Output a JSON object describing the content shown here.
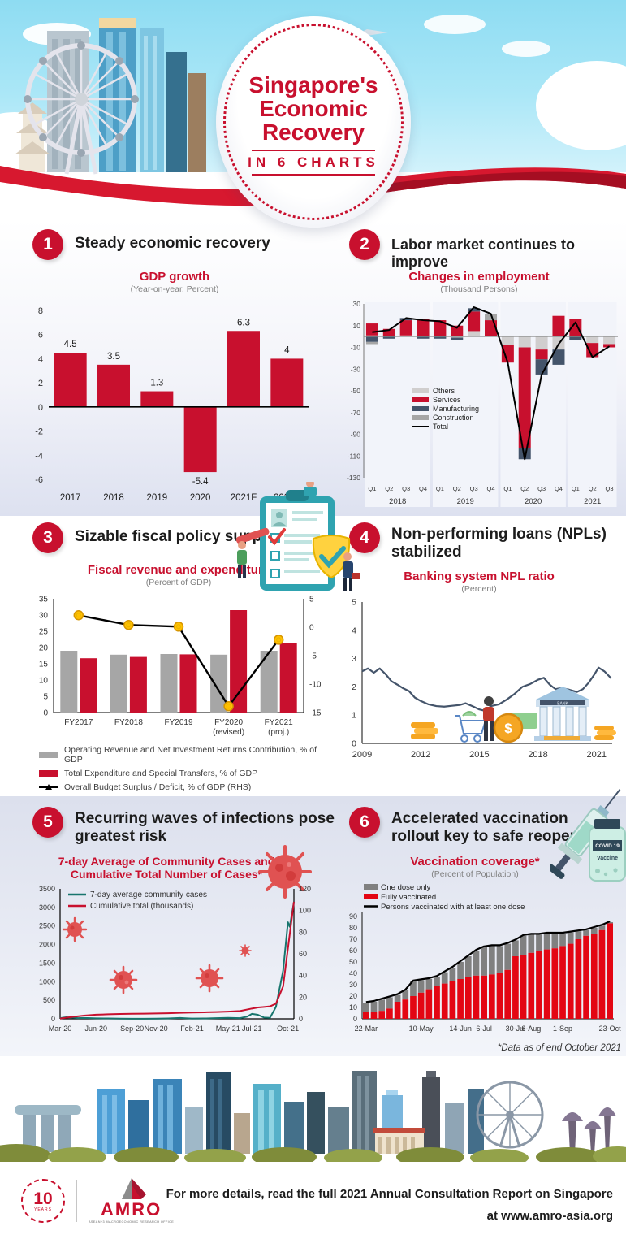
{
  "header": {
    "title_lines": [
      "Singapore's",
      "Economic",
      "Recovery"
    ],
    "subtitle": "IN 6 CHARTS"
  },
  "deco": {
    "vial_label_line1": "COVID 19",
    "vial_label_line2": "Vaccine",
    "bank_label": "BANK"
  },
  "footnote": "*Data as of end October 2021",
  "footer": {
    "line1": "For more details, read the full 2021 Annual Consultation Report on Singapore",
    "line2": "at www.amro-asia.org",
    "anniversary_number": "10",
    "anniversary_caption": "YEARS",
    "amro_name": "AMRO",
    "amro_tagline": "ASEAN+3 MACROECONOMIC RESEARCH OFFICE"
  },
  "chart_data": [
    {
      "type": "bar",
      "number": "1",
      "heading_lines": [
        "Steady economic recovery"
      ],
      "title_lines": [
        "GDP growth"
      ],
      "subtitle": "(Year-on-year, Percent)",
      "categories": [
        "2017",
        "2018",
        "2019",
        "2020",
        "2021F",
        "2022F"
      ],
      "values": [
        4.5,
        3.5,
        1.3,
        -5.4,
        6.3,
        4
      ],
      "bar_color": "#c8102e",
      "ylim": [
        -6,
        8
      ],
      "yticks": [
        8,
        6,
        4,
        2,
        0,
        -2,
        -4,
        -6
      ]
    },
    {
      "type": "stacked_bar_line",
      "number": "2",
      "heading_lines": [
        "Labor market continues to improve"
      ],
      "title_lines": [
        "Changes in employment"
      ],
      "subtitle": "(Thousand Persons)",
      "categories": [
        "Q1",
        "Q2",
        "Q3",
        "Q4",
        "Q1",
        "Q2",
        "Q3",
        "Q4",
        "Q1",
        "Q2",
        "Q3",
        "Q4",
        "Q1",
        "Q2",
        "Q3"
      ],
      "year_groups": [
        {
          "label": "2018",
          "span": 4
        },
        {
          "label": "2019",
          "span": 4
        },
        {
          "label": "2020",
          "span": 4
        },
        {
          "label": "2021",
          "span": 3
        }
      ],
      "series": [
        {
          "name": "Others",
          "color": "#d0cece",
          "values": [
            1,
            0,
            1,
            0,
            0,
            -1,
            5,
            0,
            -8,
            -10,
            -12,
            -12,
            0,
            -6,
            -7
          ]
        },
        {
          "name": "Services",
          "color": "#c8102e",
          "values": [
            11,
            7,
            14,
            16,
            15,
            10,
            18,
            15,
            -16,
            -93,
            -9,
            19,
            16,
            -13,
            -3
          ]
        },
        {
          "name": "Manufacturing",
          "color": "#44546a",
          "values": [
            -5,
            -2,
            2,
            -2,
            -2,
            -2,
            3,
            0,
            0,
            -10,
            -14,
            -14,
            -3,
            0,
            0
          ]
        },
        {
          "name": "Construction",
          "color": "#a6a6a6",
          "values": [
            -2,
            0,
            0,
            0,
            0,
            0,
            0,
            6,
            0,
            0,
            0,
            0,
            0,
            0,
            0
          ]
        }
      ],
      "line": {
        "name": "Total",
        "color": "#000000",
        "values": [
          4,
          6,
          17,
          15,
          14,
          8,
          27,
          21,
          -24,
          -113,
          -35,
          -7,
          13,
          -19,
          -9
        ]
      },
      "ylim": [
        -130,
        30
      ],
      "yticks": [
        30,
        10,
        -10,
        -30,
        -50,
        -70,
        -90,
        -110,
        -130
      ]
    },
    {
      "type": "grouped_bar_line",
      "number": "3",
      "heading_lines": [
        "Sizable fiscal policy support"
      ],
      "title_lines": [
        "Fiscal revenue and expenditure"
      ],
      "subtitle": "(Percent of GDP)",
      "categories": [
        [
          "FY2017"
        ],
        [
          "FY2018"
        ],
        [
          "FY2019"
        ],
        [
          "FY2020",
          "(revised)"
        ],
        [
          "FY2021",
          "(proj.)"
        ]
      ],
      "bars": [
        {
          "name": "Operating Revenue and Net Investment Returns Contribution, % of GDP",
          "color": "#a6a6a6",
          "values": [
            19,
            17.8,
            18,
            17.8,
            19
          ]
        },
        {
          "name": "Total Expenditure and Special Transfers, % of GDP",
          "color": "#c8102e",
          "values": [
            16.7,
            17.1,
            17.9,
            31.5,
            21.3
          ]
        }
      ],
      "line": {
        "name": "Overall Budget Surplus / Deficit, % of GDP (RHS)",
        "color": "#000000",
        "marker_color": "#ffc000",
        "values": [
          2.1,
          0.4,
          0.1,
          -13.9,
          -2.2
        ]
      },
      "left_ylim": [
        0,
        35
      ],
      "left_yticks": [
        35,
        30,
        25,
        20,
        15,
        10,
        5,
        0
      ],
      "right_ylim": [
        -15,
        5
      ],
      "right_yticks": [
        5,
        0,
        -5,
        -10,
        -15
      ]
    },
    {
      "type": "line",
      "number": "4",
      "heading_lines": [
        "Non-performing loans (NPLs)",
        "stabilized"
      ],
      "title_lines": [
        "Banking system NPL ratio"
      ],
      "subtitle": "(Percent)",
      "line_color": "#44546a",
      "x_range": [
        2009,
        2021.8
      ],
      "x_ticks": [
        {
          "pos": 2009,
          "label": "2009"
        },
        {
          "pos": 2012,
          "label": "2012"
        },
        {
          "pos": 2015,
          "label": "2015"
        },
        {
          "pos": 2018,
          "label": "2018"
        },
        {
          "pos": 2021,
          "label": "2021"
        }
      ],
      "ylim": [
        0,
        5
      ],
      "yticks": [
        5,
        4,
        3,
        2,
        1,
        0
      ],
      "points": [
        [
          2009,
          2.55
        ],
        [
          2009.3,
          2.65
        ],
        [
          2009.6,
          2.5
        ],
        [
          2009.9,
          2.65
        ],
        [
          2010.2,
          2.45
        ],
        [
          2010.5,
          2.2
        ],
        [
          2010.8,
          2.08
        ],
        [
          2011.1,
          1.95
        ],
        [
          2011.4,
          1.85
        ],
        [
          2011.7,
          1.62
        ],
        [
          2012,
          1.5
        ],
        [
          2012.4,
          1.38
        ],
        [
          2012.8,
          1.32
        ],
        [
          2013.2,
          1.3
        ],
        [
          2013.6,
          1.33
        ],
        [
          2014,
          1.36
        ],
        [
          2014.3,
          1.42
        ],
        [
          2014.7,
          1.3
        ],
        [
          2015,
          1.2
        ],
        [
          2015.3,
          1.15
        ],
        [
          2015.6,
          1.32
        ],
        [
          2016,
          1.38
        ],
        [
          2016.4,
          1.55
        ],
        [
          2016.8,
          1.75
        ],
        [
          2017.2,
          2.0
        ],
        [
          2017.6,
          2.1
        ],
        [
          2018,
          2.25
        ],
        [
          2018.3,
          2.32
        ],
        [
          2018.6,
          2.08
        ],
        [
          2018.9,
          1.92
        ],
        [
          2019.2,
          1.96
        ],
        [
          2019.6,
          1.9
        ],
        [
          2020,
          1.82
        ],
        [
          2020.3,
          1.92
        ],
        [
          2020.6,
          2.15
        ],
        [
          2020.9,
          2.45
        ],
        [
          2021.1,
          2.68
        ],
        [
          2021.4,
          2.55
        ],
        [
          2021.75,
          2.3
        ]
      ]
    },
    {
      "type": "dual_line",
      "number": "5",
      "heading_lines": [
        "Recurring waves of infections pose",
        "greatest risk"
      ],
      "title_lines": [
        "7-day Average of Community Cases and",
        "Cumulative Total Number of Cases*"
      ],
      "subtitle": "",
      "left_ylim": [
        0,
        3500
      ],
      "left_yticks": [
        3500,
        3000,
        2500,
        2000,
        1500,
        1000,
        500,
        0
      ],
      "right_ylim": [
        0,
        120
      ],
      "right_yticks": [
        120,
        100,
        80,
        60,
        40,
        20,
        0
      ],
      "x_range": [
        0,
        19.5
      ],
      "x_ticks": [
        {
          "pos": 0,
          "label": "Mar-20"
        },
        {
          "pos": 3,
          "label": "Jun-20"
        },
        {
          "pos": 6,
          "label": "Sep-20"
        },
        {
          "pos": 8,
          "label": "Nov-20"
        },
        {
          "pos": 11,
          "label": "Feb-21"
        },
        {
          "pos": 14,
          "label": "May-21"
        },
        {
          "pos": 16,
          "label": "Jul-21"
        },
        {
          "pos": 19,
          "label": "Oct-21"
        }
      ],
      "series": [
        {
          "name": "7-day average community cases",
          "axis": "left",
          "color": "#17756d",
          "points": [
            [
              0,
              20
            ],
            [
              0.5,
              45
            ],
            [
              1,
              35
            ],
            [
              1.5,
              20
            ],
            [
              2,
              25
            ],
            [
              3,
              15
            ],
            [
              4,
              10
            ],
            [
              5,
              6
            ],
            [
              6,
              4
            ],
            [
              7,
              4
            ],
            [
              8,
              5
            ],
            [
              9,
              12
            ],
            [
              10,
              25
            ],
            [
              10.6,
              15
            ],
            [
              11,
              8
            ],
            [
              12,
              10
            ],
            [
              13,
              18
            ],
            [
              14,
              28
            ],
            [
              15,
              20
            ],
            [
              15.6,
              60
            ],
            [
              16,
              135
            ],
            [
              16.5,
              110
            ],
            [
              17,
              35
            ],
            [
              17.5,
              28
            ],
            [
              18,
              320
            ],
            [
              18.6,
              1300
            ],
            [
              19,
              2600
            ],
            [
              19.15,
              2480
            ],
            [
              19.5,
              3150
            ]
          ]
        },
        {
          "name": "Cumulative total (thousands)",
          "axis": "right",
          "color": "#c8102e",
          "points": [
            [
              0,
              0.3
            ],
            [
              1,
              1.8
            ],
            [
              2,
              3
            ],
            [
              3,
              3.8
            ],
            [
              4,
              4.2
            ],
            [
              5,
              4.5
            ],
            [
              6,
              4.7
            ],
            [
              7,
              4.8
            ],
            [
              8,
              5
            ],
            [
              9,
              5.2
            ],
            [
              10,
              5.5
            ],
            [
              11,
              5.8
            ],
            [
              12,
              6
            ],
            [
              13,
              6.3
            ],
            [
              14,
              6.7
            ],
            [
              15,
              7.2
            ],
            [
              16,
              9.5
            ],
            [
              16.5,
              10.5
            ],
            [
              17,
              11
            ],
            [
              17.5,
              11.5
            ],
            [
              18,
              14
            ],
            [
              18.6,
              30
            ],
            [
              19,
              65
            ],
            [
              19.5,
              108
            ]
          ]
        }
      ]
    },
    {
      "type": "vax_stacked_bar_line",
      "number": "6",
      "heading_lines": [
        "Accelerated vaccination",
        "rollout key to safe reopening"
      ],
      "title_lines": [
        "Vaccination coverage*"
      ],
      "subtitle": "(Percent of Population)",
      "legend": {
        "one_dose": "One dose only",
        "fully": "Fully vaccinated",
        "line": "Persons vaccinated with at least one dose"
      },
      "colors": {
        "fully": "#e30613",
        "one_dose": "#808080",
        "line": "#000000"
      },
      "fully": [
        6,
        6,
        7,
        9,
        15,
        17,
        20,
        23,
        26,
        29,
        31,
        33,
        35,
        37,
        38,
        38,
        39,
        40,
        43,
        55,
        56,
        58,
        60,
        61,
        62,
        64,
        66,
        70,
        73,
        75,
        78,
        84
      ],
      "total": [
        14,
        15,
        17,
        19,
        21,
        25,
        33,
        34,
        35,
        37,
        41,
        45,
        50,
        55,
        60,
        63,
        64,
        64,
        66,
        69,
        73,
        74,
        74,
        75,
        75,
        75,
        76,
        77,
        78,
        80,
        82,
        85
      ],
      "ylim": [
        0,
        90
      ],
      "yticks": [
        90,
        80,
        70,
        60,
        50,
        40,
        30,
        20,
        10,
        0
      ],
      "x_tick_idx": [
        0,
        7,
        12,
        15,
        19,
        21,
        25,
        31
      ],
      "x_tick_labels": [
        "22-Mar",
        "10-May",
        "14-Jun",
        "6-Jul",
        "30-Jul",
        "6-Aug",
        "1-Sep",
        "23-Oct"
      ]
    }
  ]
}
